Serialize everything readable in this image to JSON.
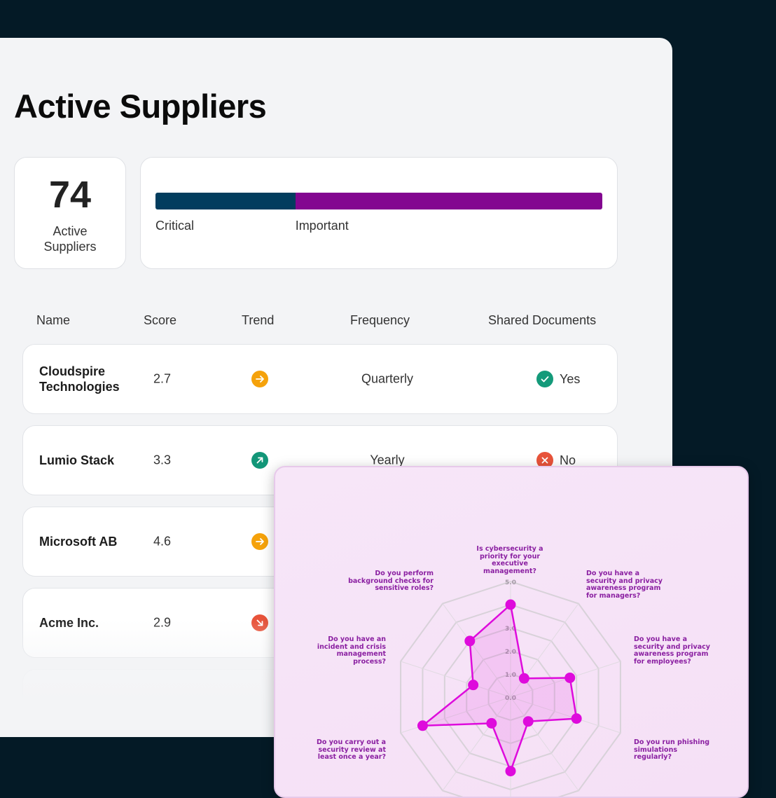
{
  "page": {
    "title": "Active Suppliers"
  },
  "summary": {
    "count": "74",
    "count_label": "Active Suppliers"
  },
  "distribution": {
    "segments": [
      {
        "label": "Critical",
        "share": 0.313,
        "color": "#023d5e"
      },
      {
        "label": "Important",
        "share": 0.687,
        "color": "#830690"
      }
    ]
  },
  "table": {
    "headers": {
      "name": "Name",
      "score": "Score",
      "trend": "Trend",
      "frequency": "Frequency",
      "shared": "Shared Documents"
    },
    "rows": [
      {
        "name": "Cloudspire Technologies",
        "score": "2.7",
        "trend": "flat",
        "frequency": "Quarterly",
        "shared": "Yes"
      },
      {
        "name": "Lumio Stack",
        "score": "3.3",
        "trend": "up",
        "frequency": "Yearly",
        "shared": "No"
      },
      {
        "name": "Microsoft AB",
        "score": "4.6",
        "trend": "flat",
        "frequency": "",
        "shared": ""
      },
      {
        "name": "Acme Inc.",
        "score": "2.9",
        "trend": "down",
        "frequency": "",
        "shared": ""
      }
    ]
  },
  "colors": {
    "trend_flat": "#f5a20b",
    "trend_up": "#129678",
    "trend_down": "#e8533a",
    "yes": "#149a7a",
    "no": "#e8533a",
    "accent": "#de0bdc"
  },
  "chart_data": {
    "type": "radar",
    "axes": [
      "Is cybersecurity a priority for your executive management?",
      "Do you have a security and privacy awareness program for managers?",
      "Do you have a security and privacy awareness program for employees?",
      "Do you run phishing simulations regularly?",
      "",
      "",
      "",
      "Do you carry out a security review at least once a year?",
      "Do you have an incident and crisis management process?",
      "Do you perform background checks for sensitive roles?"
    ],
    "values": [
      4.0,
      1.0,
      2.7,
      3.0,
      1.3,
      3.2,
      1.4,
      4.0,
      1.7,
      3.0
    ],
    "rlim": [
      0,
      5
    ],
    "tick_labels": [
      "0.0",
      "1.0",
      "2.0",
      "3.0",
      "5.0"
    ],
    "grid": true
  }
}
